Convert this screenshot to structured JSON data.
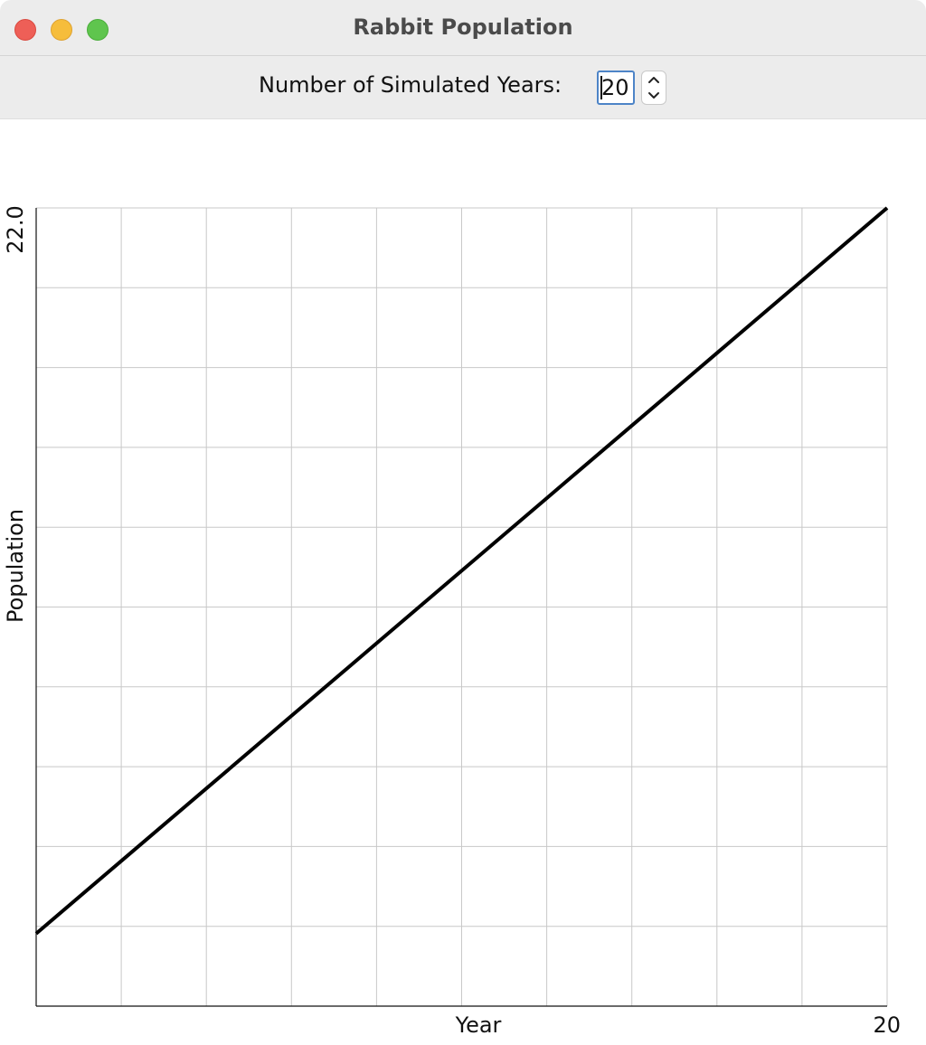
{
  "window": {
    "title": "Rabbit Population"
  },
  "controls": {
    "years_label": "Number of Simulated Years:",
    "years_value": "20"
  },
  "icons": {
    "close": "traffic-light-close",
    "minimize": "traffic-light-minimize",
    "zoom": "traffic-light-zoom",
    "step_up": "chevron-up-icon",
    "step_down": "chevron-down-icon"
  },
  "colors": {
    "line": "#000000",
    "grid": "#c8c8c8",
    "axis": "#111111",
    "field_focus": "#4d84c7"
  },
  "chart_data": {
    "type": "line",
    "xlabel": "Year",
    "ylabel": "Population",
    "x_max_label": "20",
    "y_max_label": "22.0",
    "xlim": [
      0,
      20
    ],
    "ylim": [
      0,
      22.0
    ],
    "grid": true,
    "x_grid_divisions": 10,
    "y_grid_divisions": 10,
    "series": [
      {
        "x": [
          0,
          2,
          4,
          6,
          8,
          10,
          12,
          14,
          16,
          18,
          20
        ],
        "y": [
          2.0,
          4.0,
          6.0,
          8.0,
          10.0,
          12.0,
          14.0,
          16.0,
          18.0,
          20.0,
          22.0
        ]
      }
    ]
  }
}
